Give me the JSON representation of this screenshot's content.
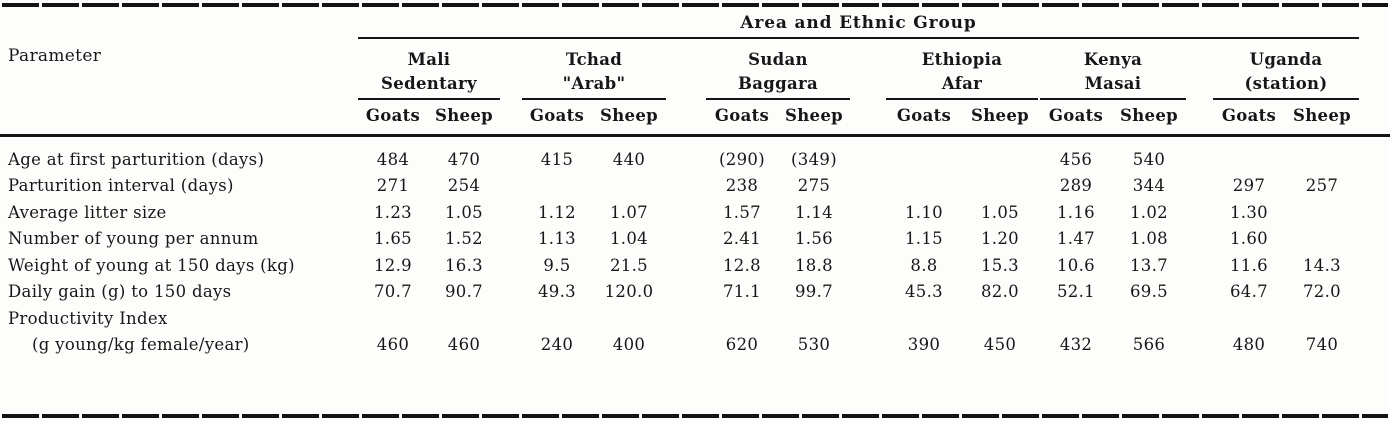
{
  "colors": {
    "ink": "#161616",
    "paper": "#fdfdfb"
  },
  "chart_data": {
    "type": "table",
    "corner_label": "Parameter",
    "span_header": "Area and Ethnic Group",
    "groups": [
      {
        "area": "Mali",
        "ethnic": "Sedentary"
      },
      {
        "area": "Tchad",
        "ethnic": "\"Arab\""
      },
      {
        "area": "Sudan",
        "ethnic": "Baggara"
      },
      {
        "area": "Ethiopia",
        "ethnic": "Afar"
      },
      {
        "area": "Kenya",
        "ethnic": "Masai"
      },
      {
        "area": "Uganda",
        "ethnic": "(station)"
      }
    ],
    "subcolumns": [
      "Goats",
      "Sheep"
    ],
    "rows": [
      {
        "label": "Age at first parturition (days)",
        "indent": false,
        "values": [
          "484",
          "470",
          "415",
          "440",
          "(290)",
          "(349)",
          "",
          "",
          "456",
          "540",
          "",
          ""
        ]
      },
      {
        "label": "Parturition interval (days)",
        "indent": false,
        "values": [
          "271",
          "254",
          "",
          "",
          "238",
          "275",
          "",
          "",
          "289",
          "344",
          "297",
          "257"
        ]
      },
      {
        "label": "Average litter size",
        "indent": false,
        "values": [
          "1.23",
          "1.05",
          "1.12",
          "1.07",
          "1.57",
          "1.14",
          "1.10",
          "1.05",
          "1.16",
          "1.02",
          "1.30",
          ""
        ]
      },
      {
        "label": "Number of young per annum",
        "indent": false,
        "values": [
          "1.65",
          "1.52",
          "1.13",
          "1.04",
          "2.41",
          "1.56",
          "1.15",
          "1.20",
          "1.47",
          "1.08",
          "1.60",
          ""
        ]
      },
      {
        "label": "Weight of young at 150 days (kg)",
        "indent": false,
        "values": [
          "12.9",
          "16.3",
          "9.5",
          "21.5",
          "12.8",
          "18.8",
          "8.8",
          "15.3",
          "10.6",
          "13.7",
          "11.6",
          "14.3"
        ]
      },
      {
        "label": "Daily gain (g) to 150 days",
        "indent": false,
        "values": [
          "70.7",
          "90.7",
          "49.3",
          "120.0",
          "71.1",
          "99.7",
          "45.3",
          "82.0",
          "52.1",
          "69.5",
          "64.7",
          "72.0"
        ]
      },
      {
        "label": "Productivity Index",
        "indent": false,
        "values": [
          "",
          "",
          "",
          "",
          "",
          "",
          "",
          "",
          "",
          "",
          "",
          ""
        ]
      },
      {
        "label": "(g young/kg female/year)",
        "indent": true,
        "values": [
          "460",
          "460",
          "240",
          "400",
          "620",
          "530",
          "390",
          "450",
          "432",
          "566",
          "480",
          "740"
        ]
      }
    ]
  }
}
